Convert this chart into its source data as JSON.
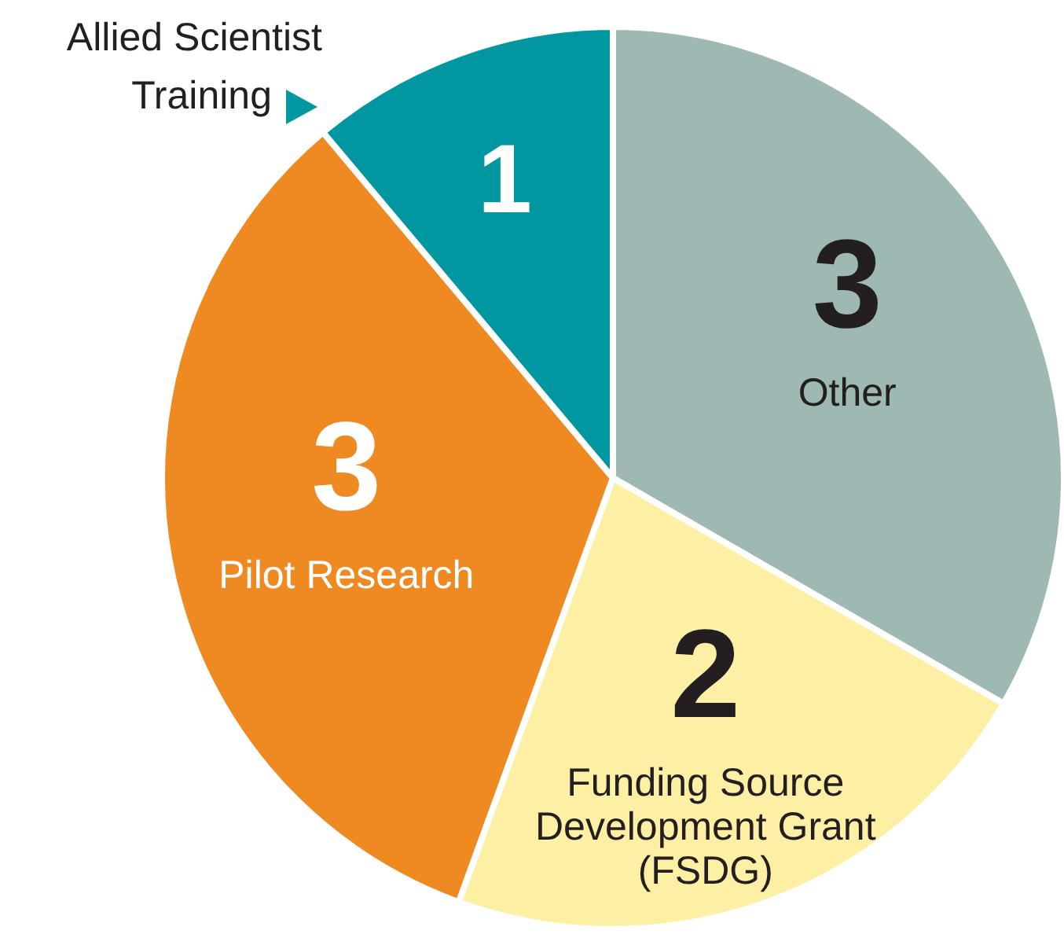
{
  "chart_data": {
    "type": "pie",
    "categories": [
      "Other",
      "Funding Source Development Grant (FSDG)",
      "Pilot Research",
      "Allied Scientist Training"
    ],
    "values": [
      3,
      2,
      3,
      1
    ],
    "colors": [
      "#9eb8b3",
      "#fdf0a5",
      "#ef8a22",
      "#0097a0"
    ],
    "data_labels": true
  }
}
